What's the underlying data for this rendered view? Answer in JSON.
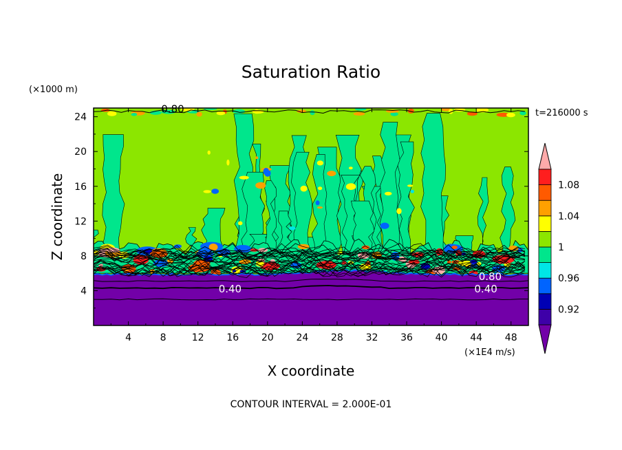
{
  "chart_data": {
    "type": "heatmap",
    "title": "Saturation Ratio",
    "xlabel": "X coordinate",
    "ylabel": "Z coordinate",
    "x_unit": "(×1E4 m/s)",
    "y_unit": "(×1000 m)",
    "time_label": "t=216000 s",
    "footer": "CONTOUR INTERVAL = 2.000E-01",
    "xlim": [
      0,
      50
    ],
    "ylim": [
      0,
      25
    ],
    "x_ticks": [
      "4",
      "8",
      "12",
      "16",
      "20",
      "24",
      "28",
      "32",
      "36",
      "40",
      "44",
      "48"
    ],
    "x_tick_values": [
      4,
      8,
      12,
      16,
      20,
      24,
      28,
      32,
      36,
      40,
      44,
      48
    ],
    "y_ticks": [
      "4",
      "8",
      "12",
      "16",
      "20",
      "24"
    ],
    "y_tick_values": [
      4,
      8,
      12,
      16,
      20,
      24
    ],
    "contour_labels": [
      {
        "text": "0.40",
        "x": 15.7,
        "z": 4.2
      },
      {
        "text": "0.40",
        "x": 45.1,
        "z": 4.2
      },
      {
        "text": "0.80",
        "x": 45.6,
        "z": 5.6
      },
      {
        "text": "0.80",
        "x": 9.1,
        "z": 24.9
      }
    ],
    "colorbar": {
      "levels": [
        0.92,
        0.94,
        0.96,
        0.98,
        1.0,
        1.02,
        1.04,
        1.06,
        1.08,
        1.1
      ],
      "tick_labels": [
        "0.92",
        "0.96",
        "1",
        "1.04",
        "1.08"
      ],
      "tick_values": [
        0.92,
        0.96,
        1.0,
        1.04,
        1.08
      ],
      "colors": [
        "#7200a8",
        "#3e00a8",
        "#0000b4",
        "#0064ff",
        "#00e6e6",
        "#00e68c",
        "#8ce600",
        "#ffff00",
        "#ffa000",
        "#ff5a00",
        "#ff1e1e",
        "#ffaaaa"
      ],
      "extend": "both"
    },
    "regions": [
      {
        "z_range": [
          0,
          5.9
        ],
        "value": 0.4,
        "color": "#7200a8"
      },
      {
        "z_range": [
          5.9,
          9.5
        ],
        "value": 1.0,
        "color": "#00e68c"
      },
      {
        "z_range": [
          9.5,
          24.2
        ],
        "value": 1.0,
        "color": "#8ce600"
      },
      {
        "z_range": [
          24.2,
          25
        ],
        "value": 1.0,
        "color": "#8ce600"
      }
    ]
  }
}
